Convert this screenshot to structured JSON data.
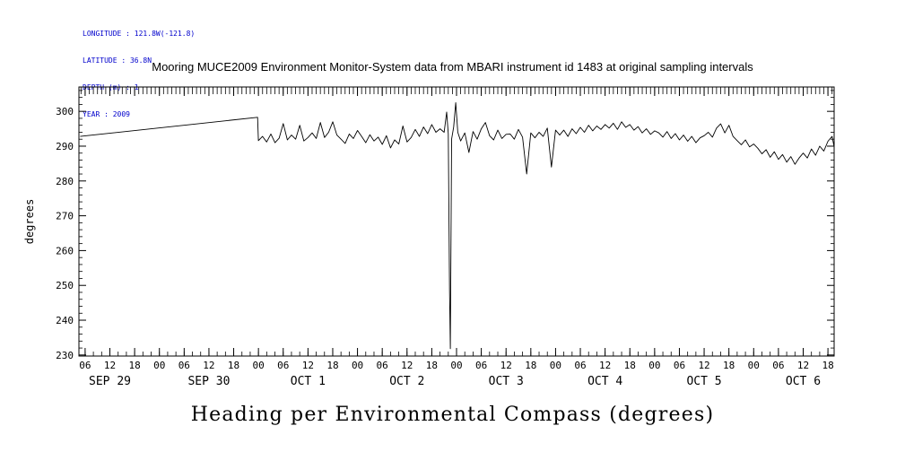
{
  "colors": {
    "background": "#ffffff",
    "plot_line": "#000000",
    "axis": "#000000",
    "header_text": "#0000cc",
    "label_text": "#000000"
  },
  "header_info": {
    "lines": [
      "LONGITUDE : 121.8W(-121.8)",
      "LATITUDE : 36.8N",
      "DEPTH (m) : 1",
      "YEAR : 2009"
    ]
  },
  "title": "Mooring MUCE2009 Environment Monitor-System data from MBARI instrument id 1483 at original sampling intervals",
  "caption": "Heading per Environmental Compass (degrees)",
  "chart_data": {
    "type": "line",
    "title": "Mooring MUCE2009 Environment Monitor-System data from MBARI instrument id 1483 at original sampling intervals",
    "xlabel": "Heading per Environmental Compass (degrees)",
    "ylabel": "degrees",
    "grid": false,
    "legend": "none",
    "x_range_hours": [
      4.5,
      187.5
    ],
    "y_range": [
      229.7,
      307.0
    ],
    "y_ticks": [
      230,
      240,
      250,
      260,
      270,
      280,
      290,
      300
    ],
    "y_tick_labels": [
      "230",
      "240",
      "250",
      "260",
      "270",
      "280",
      "290",
      "300"
    ],
    "y_minor_step": 2,
    "x_major_start_hour": 6,
    "x_major_step_hours": 6,
    "x_major_labels": [
      "06",
      "12",
      "18",
      "00",
      "06",
      "12",
      "18",
      "00",
      "06",
      "12",
      "18",
      "00",
      "06",
      "12",
      "18",
      "00",
      "06",
      "12",
      "18",
      "00",
      "06",
      "12",
      "18",
      "00",
      "06",
      "12",
      "18",
      "00",
      "06",
      "12",
      "18"
    ],
    "x_minor_step_hours": 2,
    "x_top_minor_step_hours": 1,
    "day_labels": [
      {
        "label": "SEP 29",
        "hour": 12
      },
      {
        "label": "SEP 30",
        "hour": 36
      },
      {
        "label": "OCT 1",
        "hour": 60
      },
      {
        "label": "OCT 2",
        "hour": 84
      },
      {
        "label": "OCT 3",
        "hour": 108
      },
      {
        "label": "OCT 4",
        "hour": 132
      },
      {
        "label": "OCT 5",
        "hour": 156
      },
      {
        "label": "OCT 6",
        "hour": 180
      }
    ],
    "series": [
      {
        "name": "heading",
        "points": [
          [
            4.8,
            292.8
          ],
          [
            47.8,
            298.3
          ],
          [
            48.0,
            291.6
          ],
          [
            49,
            292.8
          ],
          [
            50,
            291.2
          ],
          [
            51,
            293.5
          ],
          [
            52,
            291.0
          ],
          [
            53,
            292.3
          ],
          [
            54,
            296.5
          ],
          [
            55,
            291.8
          ],
          [
            56,
            293.2
          ],
          [
            57,
            292.0
          ],
          [
            58,
            296.0
          ],
          [
            59,
            291.5
          ],
          [
            60,
            292.5
          ],
          [
            61,
            293.8
          ],
          [
            62,
            292.2
          ],
          [
            63,
            296.8
          ],
          [
            64,
            292.5
          ],
          [
            65,
            294.0
          ],
          [
            66,
            297.0
          ],
          [
            67,
            293.2
          ],
          [
            68,
            292.0
          ],
          [
            69,
            290.8
          ],
          [
            70,
            293.5
          ],
          [
            71,
            292.2
          ],
          [
            72,
            294.5
          ],
          [
            73,
            292.8
          ],
          [
            74,
            291.0
          ],
          [
            75,
            293.3
          ],
          [
            76,
            291.5
          ],
          [
            77,
            292.6
          ],
          [
            78,
            290.5
          ],
          [
            79,
            293.0
          ],
          [
            80,
            289.5
          ],
          [
            81,
            291.8
          ],
          [
            82,
            290.6
          ],
          [
            83,
            295.8
          ],
          [
            84,
            291.2
          ],
          [
            85,
            292.5
          ],
          [
            86,
            294.8
          ],
          [
            87,
            292.8
          ],
          [
            88,
            295.5
          ],
          [
            89,
            293.6
          ],
          [
            90,
            296.2
          ],
          [
            91,
            294.0
          ],
          [
            92,
            295.0
          ],
          [
            93,
            294.0
          ],
          [
            93.6,
            299.8
          ],
          [
            94.0,
            293.5
          ],
          [
            94.3,
            248.5
          ],
          [
            94.5,
            231.8
          ],
          [
            94.8,
            292.0
          ],
          [
            95.3,
            295.5
          ],
          [
            95.8,
            302.5
          ],
          [
            96.3,
            294.0
          ],
          [
            97,
            291.5
          ],
          [
            98,
            293.8
          ],
          [
            99,
            288.2
          ],
          [
            100,
            294.2
          ],
          [
            101,
            292.0
          ],
          [
            102,
            295.0
          ],
          [
            103,
            296.8
          ],
          [
            104,
            293.0
          ],
          [
            105,
            291.8
          ],
          [
            106,
            294.6
          ],
          [
            107,
            292.2
          ],
          [
            108,
            293.4
          ],
          [
            109,
            293.5
          ],
          [
            110,
            292.0
          ],
          [
            111,
            294.8
          ],
          [
            112,
            292.6
          ],
          [
            113,
            282.0
          ],
          [
            114,
            293.8
          ],
          [
            115,
            292.4
          ],
          [
            116,
            294.0
          ],
          [
            117,
            292.8
          ],
          [
            118,
            295.2
          ],
          [
            119,
            284.0
          ],
          [
            120,
            294.6
          ],
          [
            121,
            293.2
          ],
          [
            122,
            294.6
          ],
          [
            123,
            292.8
          ],
          [
            124,
            295.0
          ],
          [
            125,
            293.6
          ],
          [
            126,
            295.4
          ],
          [
            127,
            294.0
          ],
          [
            128,
            296.0
          ],
          [
            129,
            294.4
          ],
          [
            130,
            295.8
          ],
          [
            131,
            294.8
          ],
          [
            132,
            296.2
          ],
          [
            133,
            295.2
          ],
          [
            134,
            296.6
          ],
          [
            135,
            294.8
          ],
          [
            136,
            297.0
          ],
          [
            137,
            295.4
          ],
          [
            138,
            296.2
          ],
          [
            139,
            294.6
          ],
          [
            140,
            295.6
          ],
          [
            141,
            293.8
          ],
          [
            142,
            295.0
          ],
          [
            143,
            293.4
          ],
          [
            144,
            294.4
          ],
          [
            145,
            293.8
          ],
          [
            146,
            292.6
          ],
          [
            147,
            294.2
          ],
          [
            148,
            292.2
          ],
          [
            149,
            293.6
          ],
          [
            150,
            291.8
          ],
          [
            151,
            293.2
          ],
          [
            152,
            291.4
          ],
          [
            153,
            292.8
          ],
          [
            154,
            291.0
          ],
          [
            155,
            292.4
          ],
          [
            156,
            293.0
          ],
          [
            157,
            294.0
          ],
          [
            158,
            292.6
          ],
          [
            159,
            295.2
          ],
          [
            160,
            296.4
          ],
          [
            161,
            293.8
          ],
          [
            162,
            296.0
          ],
          [
            163,
            292.8
          ],
          [
            164,
            291.6
          ],
          [
            165,
            290.4
          ],
          [
            166,
            291.8
          ],
          [
            167,
            289.8
          ],
          [
            168,
            290.6
          ],
          [
            169,
            289.4
          ],
          [
            170,
            287.8
          ],
          [
            171,
            289.0
          ],
          [
            172,
            286.8
          ],
          [
            173,
            288.4
          ],
          [
            174,
            286.2
          ],
          [
            175,
            287.6
          ],
          [
            176,
            285.4
          ],
          [
            177,
            287.0
          ],
          [
            178,
            284.8
          ],
          [
            179,
            286.6
          ],
          [
            180,
            288.0
          ],
          [
            181,
            286.6
          ],
          [
            182,
            289.2
          ],
          [
            183,
            287.4
          ],
          [
            184,
            290.0
          ],
          [
            185,
            288.6
          ],
          [
            186,
            291.4
          ],
          [
            187,
            292.8
          ],
          [
            187.5,
            289.8
          ]
        ]
      }
    ]
  }
}
